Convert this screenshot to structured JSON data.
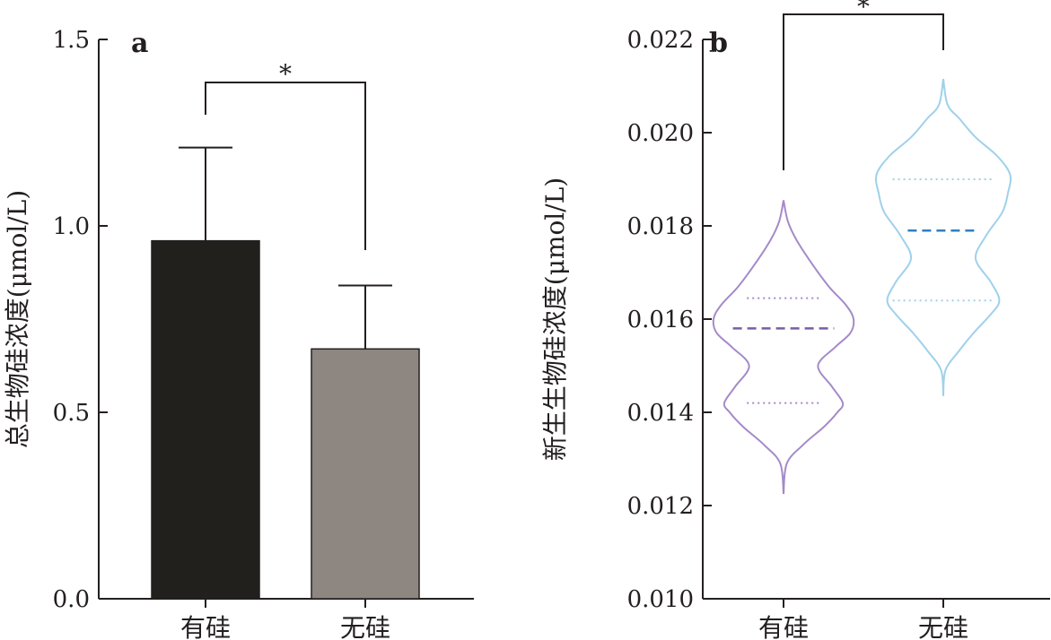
{
  "chart_data": [
    {
      "panel": "a",
      "type": "bar",
      "ylabel": "总生物硅浓度(μmol/L)",
      "ylim": [
        0,
        1.5
      ],
      "yticks": [
        "0.0",
        "0.5",
        "1.0",
        "1.5"
      ],
      "categories": [
        "有硅",
        "无硅"
      ],
      "values": [
        0.96,
        0.67
      ],
      "errors": [
        0.25,
        0.17
      ],
      "colors": [
        "#22201c",
        "#8e8680"
      ],
      "significance": "*"
    },
    {
      "panel": "b",
      "type": "violin",
      "ylabel": "新生生物硅浓度(μmol/L)",
      "ylim": [
        0.01,
        0.022
      ],
      "yticks": [
        "0.010",
        "0.012",
        "0.014",
        "0.016",
        "0.018",
        "0.020",
        "0.022"
      ],
      "categories": [
        "有硅",
        "无硅"
      ],
      "colors": [
        "#a58ac9",
        "#9fd1ec"
      ],
      "median_colors": [
        "#7a5ba8",
        "#2f7fc0"
      ],
      "violins": [
        {
          "median": 0.0158,
          "q1": 0.0142,
          "q3": 0.01645,
          "quartile_halfwidth": 0.34,
          "median_halfwidth": 0.47,
          "profile": [
            [
              0.01225,
              0.0
            ],
            [
              0.0129,
              0.03
            ],
            [
              0.0133,
              0.18
            ],
            [
              0.0137,
              0.38
            ],
            [
              0.014,
              0.5
            ],
            [
              0.0142,
              0.55
            ],
            [
              0.01455,
              0.45
            ],
            [
              0.015,
              0.32
            ],
            [
              0.0154,
              0.48
            ],
            [
              0.0157,
              0.62
            ],
            [
              0.016,
              0.65
            ],
            [
              0.0163,
              0.58
            ],
            [
              0.0167,
              0.42
            ],
            [
              0.0172,
              0.26
            ],
            [
              0.0177,
              0.12
            ],
            [
              0.0181,
              0.04
            ],
            [
              0.01855,
              0.0
            ]
          ]
        },
        {
          "median": 0.0179,
          "q1": 0.0164,
          "q3": 0.019,
          "quartile_halfwidth": 0.47,
          "median_halfwidth": 0.33,
          "profile": [
            [
              0.01435,
              0.0
            ],
            [
              0.0149,
              0.02
            ],
            [
              0.0153,
              0.14
            ],
            [
              0.0157,
              0.28
            ],
            [
              0.0161,
              0.44
            ],
            [
              0.0164,
              0.52
            ],
            [
              0.0168,
              0.44
            ],
            [
              0.0173,
              0.3
            ],
            [
              0.0178,
              0.4
            ],
            [
              0.0183,
              0.55
            ],
            [
              0.0187,
              0.6
            ],
            [
              0.0191,
              0.62
            ],
            [
              0.0195,
              0.5
            ],
            [
              0.0199,
              0.3
            ],
            [
              0.0203,
              0.15
            ],
            [
              0.0206,
              0.04
            ],
            [
              0.02115,
              0.0
            ]
          ]
        }
      ],
      "significance": "*"
    }
  ]
}
